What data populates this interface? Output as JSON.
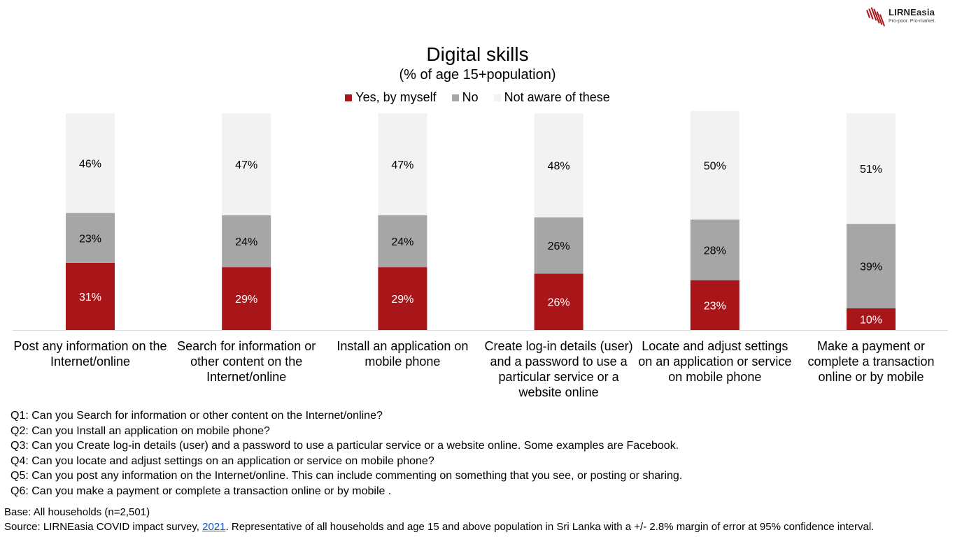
{
  "logo": {
    "name": "LIRNEasia",
    "tagline": "Pro-poor. Pro-market."
  },
  "chart_data": {
    "type": "bar",
    "stacked": true,
    "title": "Digital skills",
    "subtitle": "(% of age 15+population)",
    "categories": [
      "Post any information on the Internet/online",
      "Search for information or other content on the Internet/online",
      "Install an application on mobile phone",
      "Create log-in details (user) and a password to use a particular service or a website online",
      "Locate and adjust settings on an application or service on mobile phone",
      "Make a payment or complete a transaction online or by mobile"
    ],
    "series": [
      {
        "name": "Yes, by myself",
        "color": "#a8161a",
        "values": [
          31,
          29,
          29,
          26,
          23,
          10
        ],
        "labels": [
          "31%",
          "29%",
          "29%",
          "26%",
          "23%",
          "10%"
        ]
      },
      {
        "name": "No",
        "color": "#a6a6a6",
        "values": [
          23,
          24,
          24,
          26,
          28,
          39
        ],
        "labels": [
          "23%",
          "24%",
          "24%",
          "26%",
          "28%",
          "39%"
        ]
      },
      {
        "name": "Not aware of these",
        "color": "#f2f2f2",
        "values": [
          46,
          47,
          47,
          48,
          50,
          51
        ],
        "labels": [
          "46%",
          "47%",
          "47%",
          "48%",
          "50%",
          "51%"
        ]
      }
    ],
    "ylim": [
      0,
      100
    ],
    "legend": "top",
    "grid": false
  },
  "notes": {
    "questions": [
      "Q1: Can you Search for information or other content on the Internet/online?",
      "Q2: Can you Install an application on mobile phone?",
      "Q3: Can you Create log-in details (user) and a password to use a particular service or a website online. Some examples are Facebook.",
      "Q4: Can you locate and adjust settings on an application or service on mobile phone?",
      "Q5: Can you post any information on the Internet/online. This can include commenting on something that you see, or posting or sharing.",
      "Q6: Can you make a payment or complete a transaction online or by mobile ."
    ],
    "base": "Base: All households (n=2,501)",
    "source_prefix": "Source: LIRNEasia COVID impact survey, ",
    "source_link": "2021",
    "source_suffix": ". Representative of all households and age 15 and above population in Sri Lanka with a +/- 2.8% margin of error at 95% confidence interval."
  }
}
